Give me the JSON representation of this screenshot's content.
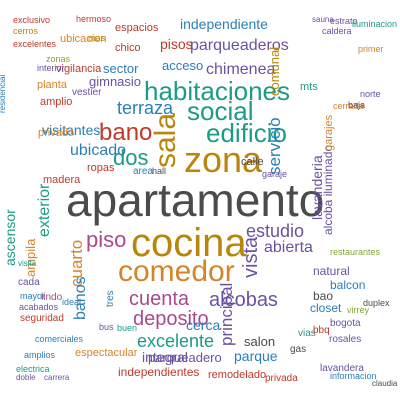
{
  "words": {
    "apartamento": "apartamento",
    "cocina": "cocina",
    "zona": "zona",
    "sala": "sala",
    "comedor": "comedor",
    "habitaciones": "habitaciones",
    "social": "social",
    "edificio": "edificio",
    "bano": "bano",
    "piso": "piso",
    "dos": "dos",
    "cuenta": "cuenta",
    "alcobas": "alcobas",
    "deposito": "deposito",
    "estudio": "estudio",
    "excelente": "excelente",
    "terraza": "terraza",
    "parqueaderos": "parqueaderos",
    "chimenea": "chimenea",
    "principal": "principal",
    "vista": "vista",
    "servicio": "servicio",
    "abierta": "abierta",
    "cuarto": "cuarto",
    "exterior": "exterior",
    "banos": "banos",
    "ubicado": "ubicado",
    "visitantes": "visitantes",
    "lavanderia": "lavanderia",
    "alcoba_iluminado": "alcoba iluminado",
    "independiente": "independiente",
    "pisos": "pisos",
    "acceso": "acceso",
    "sector": "sector",
    "gimnasio": "gimnasio",
    "comunal": "comunal",
    "cerca": "cerca",
    "integral": "integral",
    "parqueadero": "parqueadero",
    "parque": "parque",
    "salon": "salon",
    "natural": "natural",
    "balcon": "balcon",
    "bao": "bao",
    "closet": "closet",
    "independientes": "independientes",
    "espectacular": "espectacular",
    "remodelado": "remodelado",
    "seguridad": "seguridad",
    "privada": "privada",
    "ascensor": "ascensor",
    "ampila": "ampila",
    "lindo": "lindo",
    "madera": "madera",
    "privado": "privado",
    "amplio": "amplio",
    "planta": "planta",
    "vigilancia": "vigilancia",
    "chico": "chico",
    "ubicacion": "ubicacion",
    "espacios": "espacios",
    "exclusivo": "exclusivo",
    "excelentes": "excelentes",
    "cerros": "cerros",
    "mas": "mas",
    "interior": "interior",
    "zonas": "zonas",
    "hermoso": "hermoso",
    "ropas": "ropas",
    "area": "area",
    "hall": "hall",
    "vestier": "vestier",
    "calle": "calle",
    "garaje": "garaje",
    "mts": "mts",
    "garajes": "garajes",
    "cerrada": "cerrada",
    "baja": "baja",
    "norte": "norte",
    "primer": "primer",
    "caldera": "caldera",
    "estrato": "estrato",
    "sauna": "sauna",
    "restaurantes": "restaurantes",
    "bbq": "bbq",
    "vias": "vias",
    "bogota": "bogota",
    "rosales": "rosales",
    "gas": "gas",
    "lavandera": "lavandera",
    "informacion": "informacion",
    "claudia": "claudia",
    "duplex": "duplex",
    "virrey": "virrey",
    "electrica": "electrica",
    "doble": "doble",
    "carrera": "carrera",
    "amplios": "amplios",
    "comerciales": "comerciales",
    "acabados": "acabados",
    "mayor": "mayor",
    "cada": "cada",
    "ideal": "ideal",
    "bus": "bus",
    "buen": "buen",
    "tres": "tres",
    "visita": "visita",
    "residencial": "residencial",
    "iluminacion": "iluminacion"
  }
}
